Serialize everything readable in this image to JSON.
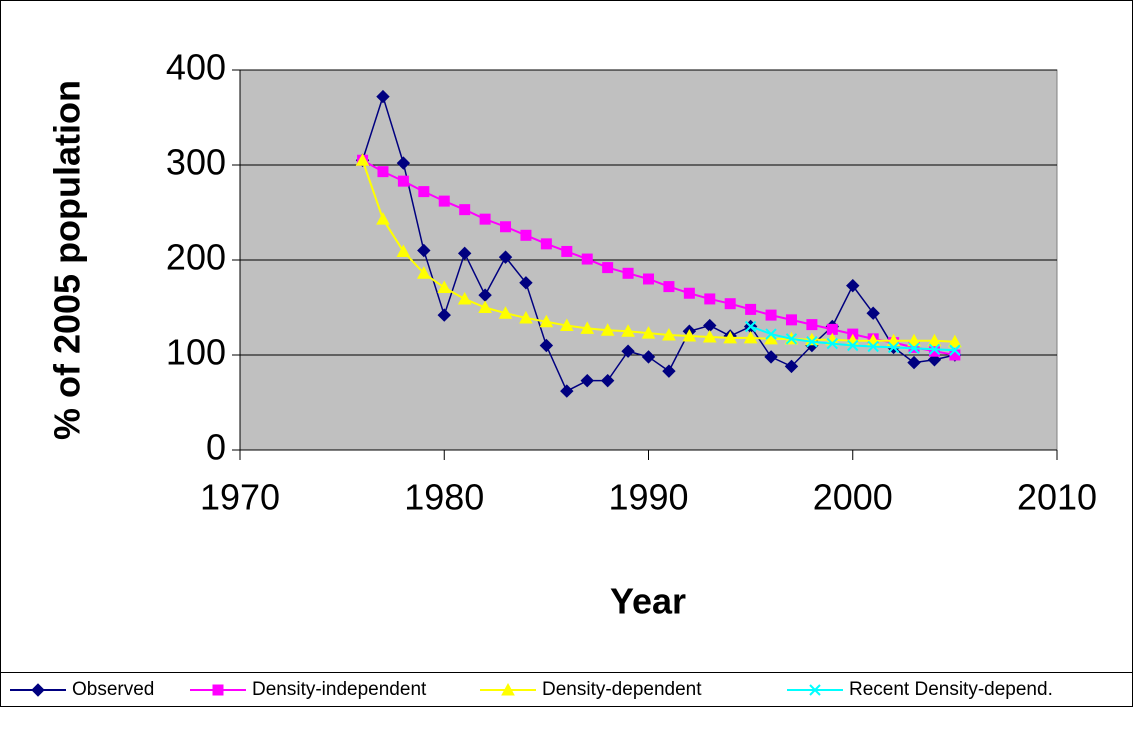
{
  "chart_data": {
    "type": "line",
    "x_label": "Year",
    "y_label": "% of 2005 population",
    "x": [
      1976,
      1977,
      1978,
      1979,
      1980,
      1981,
      1982,
      1983,
      1984,
      1985,
      1986,
      1987,
      1988,
      1989,
      1990,
      1991,
      1992,
      1993,
      1994,
      1995,
      1996,
      1997,
      1998,
      1999,
      2000,
      2001,
      2002,
      2003,
      2004,
      2005
    ],
    "series": [
      {
        "name": "Observed",
        "color": "#000080",
        "marker": "diamond",
        "values": [
          305,
          372,
          302,
          210,
          142,
          207,
          163,
          203,
          176,
          110,
          62,
          73,
          73,
          104,
          98,
          83,
          125,
          131,
          120,
          130,
          98,
          88,
          110,
          130,
          173,
          144,
          108,
          92,
          95,
          100
        ]
      },
      {
        "name": "Density-independent",
        "color": "#ff00ff",
        "marker": "square",
        "values": [
          305,
          293,
          283,
          272,
          262,
          253,
          243,
          235,
          226,
          217,
          209,
          201,
          192,
          186,
          180,
          172,
          165,
          159,
          154,
          148,
          142,
          137,
          132,
          127,
          122,
          117,
          113,
          108,
          104,
          100
        ]
      },
      {
        "name": "Density-dependent",
        "color": "#ffff00",
        "marker": "triangle",
        "values": [
          305,
          243,
          209,
          186,
          171,
          159,
          150,
          144,
          139,
          135,
          131,
          128,
          126,
          125,
          123,
          121,
          120,
          119,
          118,
          118,
          117,
          117,
          116,
          116,
          115,
          115,
          115,
          115,
          115,
          114
        ]
      },
      {
        "name": "Recent Density-depend.",
        "color": "#00ffff",
        "marker": "x",
        "values": [
          null,
          null,
          null,
          null,
          null,
          null,
          null,
          null,
          null,
          null,
          null,
          null,
          null,
          null,
          null,
          null,
          null,
          null,
          null,
          130,
          122,
          117,
          114,
          112,
          110,
          109,
          108,
          107,
          106,
          105
        ]
      }
    ],
    "xlim": [
      1970,
      2010
    ],
    "xticks": [
      1970,
      1980,
      1990,
      2000,
      2010
    ],
    "ylim": [
      0,
      400
    ],
    "yticks": [
      0,
      100,
      200,
      300,
      400
    ],
    "grid": true,
    "legend": "bottom",
    "plot_background": "#c0c0c0"
  }
}
